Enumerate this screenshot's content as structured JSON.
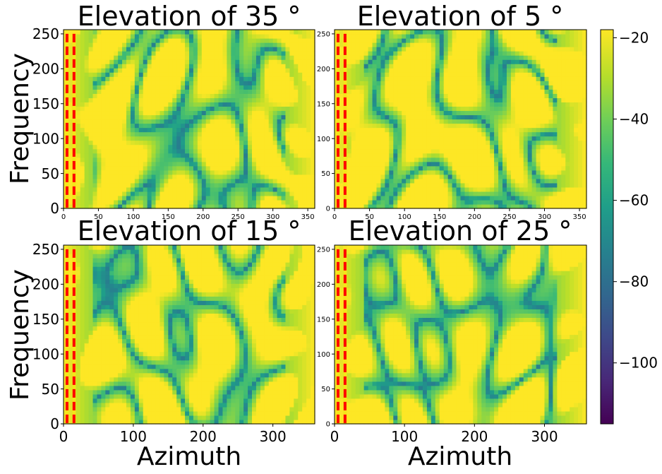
{
  "chart_data": {
    "type": "heatmap",
    "layout": "2x2 grid with shared colorbar",
    "panels": [
      {
        "title": "Elevation of 35 °",
        "xlabel": "",
        "ylabel": "Frequency",
        "xlim": [
          0,
          360
        ],
        "ylim": [
          0,
          256
        ],
        "xticks": [
          "0",
          "50",
          "100",
          "150",
          "200",
          "250",
          "300",
          "350"
        ],
        "yticks": [
          "0",
          "50",
          "100",
          "150",
          "200",
          "250"
        ],
        "xtick_values": [
          0,
          50,
          100,
          150,
          200,
          250,
          300,
          350
        ],
        "ytick_values": [
          0,
          50,
          100,
          150,
          200,
          250
        ],
        "small_xticks": true,
        "small_yticks": false,
        "dashed_vlines_azimuth": [
          5,
          15
        ],
        "seed": 1.3
      },
      {
        "title": "Elevation of 5 °",
        "xlabel": "",
        "ylabel": "",
        "xlim": [
          0,
          360
        ],
        "ylim": [
          0,
          256
        ],
        "xticks": [
          "0",
          "50",
          "100",
          "150",
          "200",
          "250",
          "300",
          "350"
        ],
        "yticks": [
          "0",
          "50",
          "100",
          "150",
          "200",
          "250"
        ],
        "xtick_values": [
          0,
          50,
          100,
          150,
          200,
          250,
          300,
          350
        ],
        "ytick_values": [
          0,
          50,
          100,
          150,
          200,
          250
        ],
        "small_xticks": true,
        "small_yticks": true,
        "dashed_vlines_azimuth": [
          5,
          15
        ],
        "seed": 2.1
      },
      {
        "title": "Elevation of 15 °",
        "xlabel": "Azimuth",
        "ylabel": "Frequency",
        "xlim": [
          0,
          360
        ],
        "ylim": [
          0,
          256
        ],
        "xticks": [
          "0",
          "100",
          "200",
          "300"
        ],
        "yticks": [
          "0",
          "50",
          "100",
          "150",
          "200",
          "250"
        ],
        "xtick_values": [
          0,
          100,
          200,
          300
        ],
        "ytick_values": [
          0,
          50,
          100,
          150,
          200,
          250
        ],
        "small_xticks": false,
        "small_yticks": false,
        "dashed_vlines_azimuth": [
          5,
          15
        ],
        "seed": 3.7
      },
      {
        "title": "Elevation of 25 °",
        "xlabel": "Azimuth",
        "ylabel": "",
        "xlim": [
          0,
          360
        ],
        "ylim": [
          0,
          256
        ],
        "xticks": [
          "0",
          "100",
          "200",
          "300"
        ],
        "yticks": [
          "0",
          "50",
          "100",
          "150",
          "200",
          "250"
        ],
        "xtick_values": [
          0,
          100,
          200,
          300
        ],
        "ytick_values": [
          0,
          50,
          100,
          150,
          200,
          250
        ],
        "small_xticks": false,
        "small_yticks": true,
        "dashed_vlines_azimuth": [
          5,
          15
        ],
        "seed": 4.4
      }
    ],
    "colorbar": {
      "colormap": "viridis",
      "range": [
        -115,
        -18
      ],
      "ticks": [
        "−20",
        "−40",
        "−60",
        "−80",
        "−100"
      ],
      "tick_values": [
        -20,
        -40,
        -60,
        -80,
        -100
      ]
    },
    "colors": {
      "dashed_line": "#ff0000",
      "dashed_gap": "#f5e51a",
      "viridis_stops": [
        "#440154",
        "#482878",
        "#3e4989",
        "#31688e",
        "#26828e",
        "#1f9e89",
        "#35b779",
        "#6ece58",
        "#b5de2b",
        "#fde725"
      ]
    }
  }
}
